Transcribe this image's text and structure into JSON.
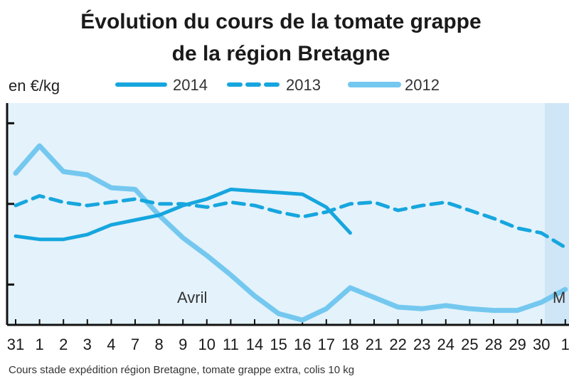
{
  "chart_data": {
    "type": "line",
    "title_lines": [
      "Évolution du cours de la tomate grappe",
      "de la région Bretagne"
    ],
    "unit_label": "en €/kg",
    "source": "Cours stade expédition région Bretagne, tomate grappe extra, colis 10 kg",
    "annotations": [
      "Avril",
      "M"
    ],
    "categories": [
      "31",
      "1",
      "2",
      "3",
      "4",
      "7",
      "8",
      "9",
      "10",
      "11",
      "14",
      "15",
      "16",
      "17",
      "18",
      "21",
      "22",
      "23",
      "24",
      "25",
      "28",
      "29",
      "30",
      "1"
    ],
    "series": [
      {
        "name": "2014",
        "style": "solid",
        "color": "#16a6de",
        "width": 5,
        "values": [
          1.6,
          1.56,
          1.56,
          1.62,
          1.74,
          1.8,
          1.86,
          1.98,
          2.06,
          2.18,
          2.16,
          2.14,
          2.12,
          1.96,
          1.64,
          null,
          null,
          null,
          null,
          null,
          null,
          null,
          null,
          null
        ]
      },
      {
        "name": "2013",
        "style": "dashed",
        "color": "#16a6de",
        "width": 5,
        "values": [
          1.98,
          2.1,
          2.02,
          1.98,
          2.02,
          2.06,
          2.0,
          2.0,
          1.96,
          2.02,
          1.98,
          1.9,
          1.84,
          1.9,
          2.0,
          2.02,
          1.92,
          1.98,
          2.02,
          1.92,
          1.82,
          1.7,
          1.64,
          1.46
        ]
      },
      {
        "name": "2012",
        "style": "solid",
        "color": "#74c8ef",
        "width": 7,
        "values": [
          2.38,
          2.72,
          2.4,
          2.36,
          2.2,
          2.18,
          1.86,
          1.58,
          1.36,
          1.12,
          0.86,
          0.64,
          0.56,
          0.7,
          0.96,
          0.84,
          0.72,
          0.7,
          0.74,
          0.7,
          0.68,
          0.68,
          0.78,
          0.94
        ]
      }
    ],
    "ylim": [
      0.5,
      3.25
    ],
    "grid": false
  }
}
